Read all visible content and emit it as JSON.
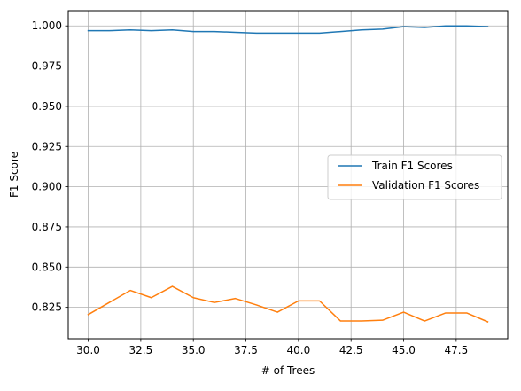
{
  "chart_data": {
    "type": "line",
    "title": "",
    "xlabel": "# of Trees",
    "ylabel": "F1 Score",
    "xlim": [
      29.05,
      49.95
    ],
    "ylim": [
      0.8055,
      1.0095
    ],
    "x_ticks": [
      30.0,
      32.5,
      35.0,
      37.5,
      40.0,
      42.5,
      45.0,
      47.5
    ],
    "x_tick_labels": [
      "30.0",
      "32.5",
      "35.0",
      "37.5",
      "40.0",
      "42.5",
      "45.0",
      "47.5"
    ],
    "y_ticks": [
      0.825,
      0.85,
      0.875,
      0.9,
      0.925,
      0.95,
      0.975,
      1.0
    ],
    "y_tick_labels": [
      "0.825",
      "0.850",
      "0.875",
      "0.900",
      "0.925",
      "0.950",
      "0.975",
      "1.000"
    ],
    "grid": true,
    "legend_position": "center-right",
    "x": [
      30,
      31,
      32,
      33,
      34,
      35,
      36,
      37,
      38,
      39,
      40,
      41,
      42,
      43,
      44,
      45,
      46,
      47,
      48,
      49
    ],
    "series": [
      {
        "name": "Train F1 Scores",
        "color": "#1f77b4",
        "values": [
          0.997,
          0.997,
          0.9975,
          0.997,
          0.9975,
          0.9965,
          0.9965,
          0.996,
          0.9955,
          0.9955,
          0.9955,
          0.9955,
          0.9965,
          0.9975,
          0.998,
          0.9995,
          0.999,
          1.0,
          1.0,
          0.9995
        ]
      },
      {
        "name": "Validation F1 Scores",
        "color": "#ff7f0e",
        "values": [
          0.8205,
          0.828,
          0.8355,
          0.831,
          0.838,
          0.831,
          0.828,
          0.8305,
          0.8265,
          0.822,
          0.829,
          0.829,
          0.8165,
          0.8165,
          0.817,
          0.822,
          0.8165,
          0.8215,
          0.8215,
          0.816
        ]
      }
    ]
  }
}
